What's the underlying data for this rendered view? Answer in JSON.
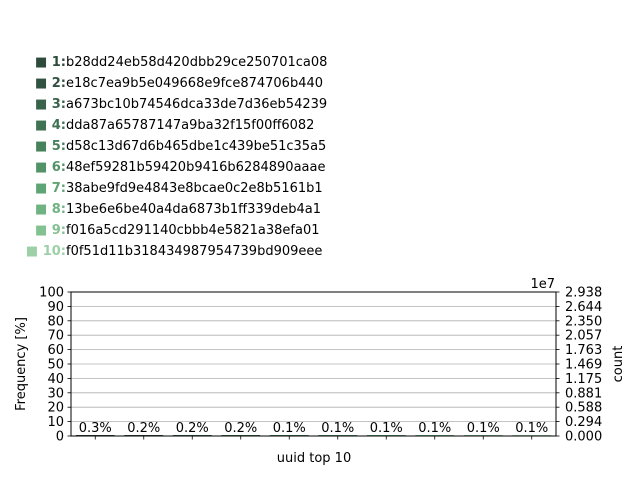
{
  "legend": {
    "items": [
      {
        "key": "1:",
        "value": "b28dd24eb58d420dbb29ce250701ca08",
        "color": "#2d4a3b"
      },
      {
        "key": "2:",
        "value": "e18c7ea9b5e049668e9fce874706b440",
        "color": "#325241"
      },
      {
        "key": "3:",
        "value": "a673bc10b74546dca33de7d36eb54239",
        "color": "#38624a"
      },
      {
        "key": "4:",
        "value": "dda87a65787147a9ba32f15f00ff6082",
        "color": "#3e7252"
      },
      {
        "key": "5:",
        "value": "d58c13d67d6b465dbe1c439be51c35a5",
        "color": "#47825c"
      },
      {
        "key": "6:",
        "value": "48ef59281b59420b9416b6284890aaae",
        "color": "#529268"
      },
      {
        "key": "7:",
        "value": "38abe9fd9e4843e8bcae0c2e8b5161b1",
        "color": "#5fa474"
      },
      {
        "key": "8:",
        "value": "13be6e6be40a4da6873b1ff339deb4a1",
        "color": "#70b382"
      },
      {
        "key": "9:",
        "value": "f016a5cd291140cbbb4e5821a38efa01",
        "color": "#84c192"
      },
      {
        "key": "10:",
        "value": "f0f51d11b318434987954739bd909eee",
        "color": "#9ed0a8"
      }
    ],
    "marker_glyph": "■"
  },
  "chart_data": {
    "type": "bar",
    "xlabel": "uuid top 10",
    "ylabel": "Frequency [%]",
    "ylabel_right": "count",
    "ylim": [
      0,
      100
    ],
    "yticks": [
      "0",
      "10",
      "20",
      "30",
      "40",
      "50",
      "60",
      "70",
      "80",
      "90",
      "100"
    ],
    "right_ylim": [
      0,
      2.938
    ],
    "right_yticks": [
      "0.000",
      "0.294",
      "0.588",
      "0.881",
      "1.175",
      "1.469",
      "1.763",
      "2.057",
      "2.350",
      "2.644",
      "2.938"
    ],
    "right_offset_label": "1e7",
    "categories": [
      "1",
      "2",
      "3",
      "4",
      "5",
      "6",
      "7",
      "8",
      "9",
      "10"
    ],
    "values": [
      0.3,
      0.2,
      0.2,
      0.2,
      0.1,
      0.1,
      0.1,
      0.1,
      0.1,
      0.1
    ],
    "value_labels": [
      "0.3%",
      "0.2%",
      "0.2%",
      "0.2%",
      "0.1%",
      "0.1%",
      "0.1%",
      "0.1%",
      "0.1%",
      "0.1%"
    ],
    "colors": [
      "#2d4a3b",
      "#325241",
      "#38624a",
      "#3e7252",
      "#47825c",
      "#529268",
      "#5fa474",
      "#70b382",
      "#84c192",
      "#9ed0a8"
    ],
    "grid": true,
    "legend_placement": "top-left"
  }
}
